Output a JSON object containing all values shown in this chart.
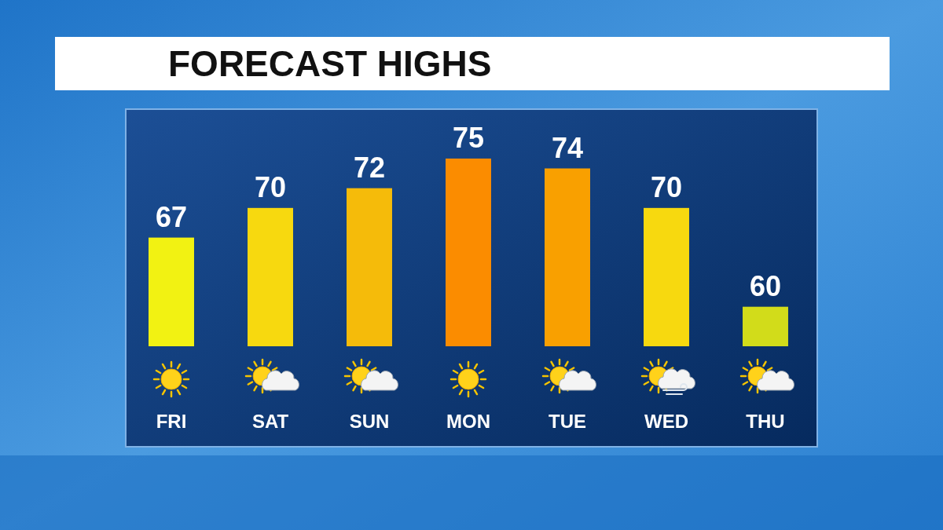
{
  "chart_data": {
    "type": "bar",
    "title": "FORECAST HIGHS",
    "categories": [
      "FRI",
      "SAT",
      "SUN",
      "MON",
      "TUE",
      "WED",
      "THU"
    ],
    "values": [
      67,
      70,
      72,
      75,
      74,
      70,
      60
    ],
    "colors": [
      "#f2f212",
      "#f7d90f",
      "#f5bb0a",
      "#fb8c00",
      "#f9a000",
      "#f7d90f",
      "#d2dc1a"
    ],
    "ylim": [
      56,
      80
    ],
    "data_labels": true,
    "tick_labels": "x"
  }
}
